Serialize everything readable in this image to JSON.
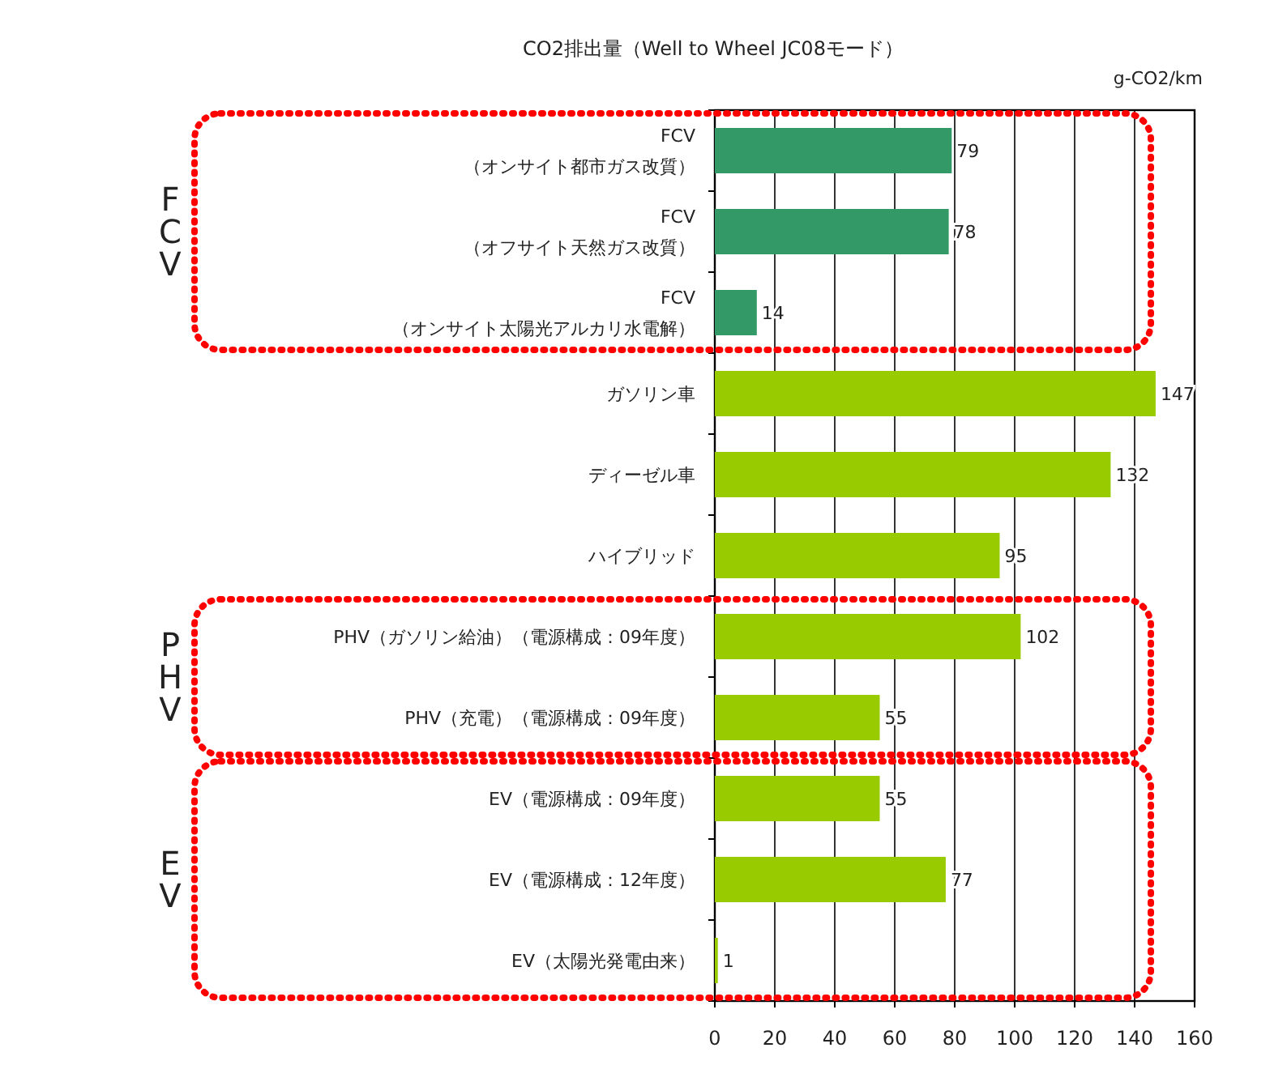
{
  "chart_data": {
    "type": "bar",
    "orientation": "horizontal",
    "title": "CO2排出量（Well to Wheel JC08モード）",
    "xlabel": "g-CO2/km",
    "categories": [
      "FCV\n（オンサイト都市ガス改質）",
      "FCV\n（オフサイト天然ガス改質）",
      "FCV\n（オンサイト太陽光アルカリ水電解）",
      "ガソリン車",
      "ディーゼル車",
      "ハイブリッド",
      "PHV（ガソリン給油）（電源構成：09年度）",
      "PHV（充電）（電源構成：09年度）",
      "EV（電源構成：09年度）",
      "EV（電源構成：12年度）",
      "EV（太陽光発電由来）"
    ],
    "values": [
      79,
      78,
      14,
      147,
      132,
      95,
      102,
      55,
      55,
      77,
      1
    ],
    "colors": [
      "#339966",
      "#339966",
      "#339966",
      "#99cc00",
      "#99cc00",
      "#99cc00",
      "#99cc00",
      "#99cc00",
      "#99cc00",
      "#99cc00",
      "#99cc00"
    ],
    "data_labels": true,
    "xlim": [
      0,
      160
    ],
    "xticks": [
      0,
      20,
      40,
      60,
      80,
      100,
      120,
      140,
      160
    ],
    "grid": "x",
    "annotations": [
      "FCV",
      "PHV",
      "EV"
    ]
  }
}
